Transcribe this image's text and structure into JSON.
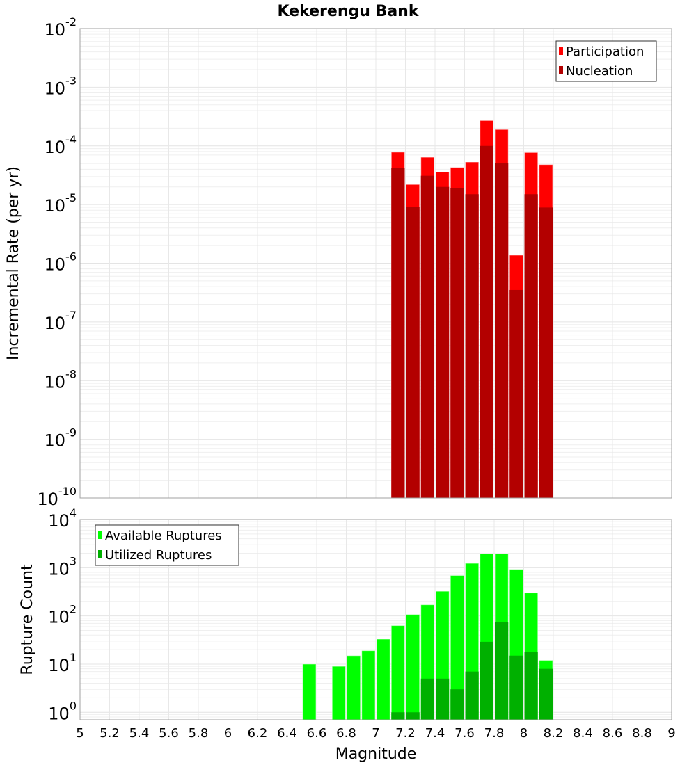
{
  "title": "Kekerengu Bank",
  "xlabel": "Magnitude",
  "x_ticks": [
    "5",
    "5.2",
    "5.4",
    "5.6",
    "5.8",
    "6",
    "6.2",
    "6.4",
    "6.6",
    "6.8",
    "7",
    "7.2",
    "7.4",
    "7.6",
    "7.8",
    "8",
    "8.2",
    "8.4",
    "8.6",
    "8.8",
    "9"
  ],
  "chart_data": [
    {
      "type": "bar",
      "name": "rate-chart",
      "ylabel": "Incremental Rate (per yr)",
      "yscale": "log",
      "xlim": [
        5,
        9
      ],
      "ylim": [
        1e-10,
        0.01
      ],
      "y_tick_base": "10",
      "y_tick_exponents": [
        "-10",
        "-9",
        "-8",
        "-7",
        "-6",
        "-5",
        "-4",
        "-3",
        "-2"
      ],
      "bin_width": 0.1,
      "legend_position": "top-right",
      "x": [
        7.15,
        7.25,
        7.35,
        7.45,
        7.55,
        7.65,
        7.75,
        7.85,
        7.95,
        8.05,
        8.15
      ],
      "series": [
        {
          "name": "Participation",
          "color": "#ff0000",
          "values": [
            7.8e-05,
            2.2e-05,
            6.4e-05,
            3.6e-05,
            4.3e-05,
            5.3e-05,
            0.00027,
            0.00019,
            1.37e-06,
            7.7e-05,
            4.8e-05
          ]
        },
        {
          "name": "Nucleation",
          "color": "#b30000",
          "values": [
            4.2e-05,
            9.2e-06,
            3.1e-05,
            2e-05,
            1.9e-05,
            1.5e-05,
            0.0001,
            5.1e-05,
            3.5e-07,
            1.5e-05,
            8.9e-06
          ]
        }
      ]
    },
    {
      "type": "bar",
      "name": "count-chart",
      "ylabel": "Rupture Count",
      "yscale": "log",
      "xlim": [
        5,
        9
      ],
      "ylim": [
        0.7,
        10000
      ],
      "y_tick_base": "10",
      "y_tick_exponents": [
        "0",
        "1",
        "2",
        "3",
        "4"
      ],
      "bin_width": 0.1,
      "legend_position": "top-left",
      "x": [
        6.55,
        6.75,
        6.85,
        6.95,
        7.05,
        7.15,
        7.25,
        7.35,
        7.45,
        7.55,
        7.65,
        7.75,
        7.85,
        7.95,
        8.05,
        8.15
      ],
      "series": [
        {
          "name": "Available Ruptures",
          "color": "#00ff00",
          "values": [
            10,
            9,
            15,
            19,
            33,
            63,
            107,
            170,
            325,
            690,
            1230,
            1940,
            1950,
            925,
            300,
            12
          ]
        },
        {
          "name": "Utilized Ruptures",
          "color": "#00b000",
          "values": [
            0,
            0,
            0,
            0,
            0,
            1,
            1,
            5,
            5,
            3,
            7,
            29,
            74,
            15,
            18,
            8
          ]
        }
      ]
    }
  ]
}
